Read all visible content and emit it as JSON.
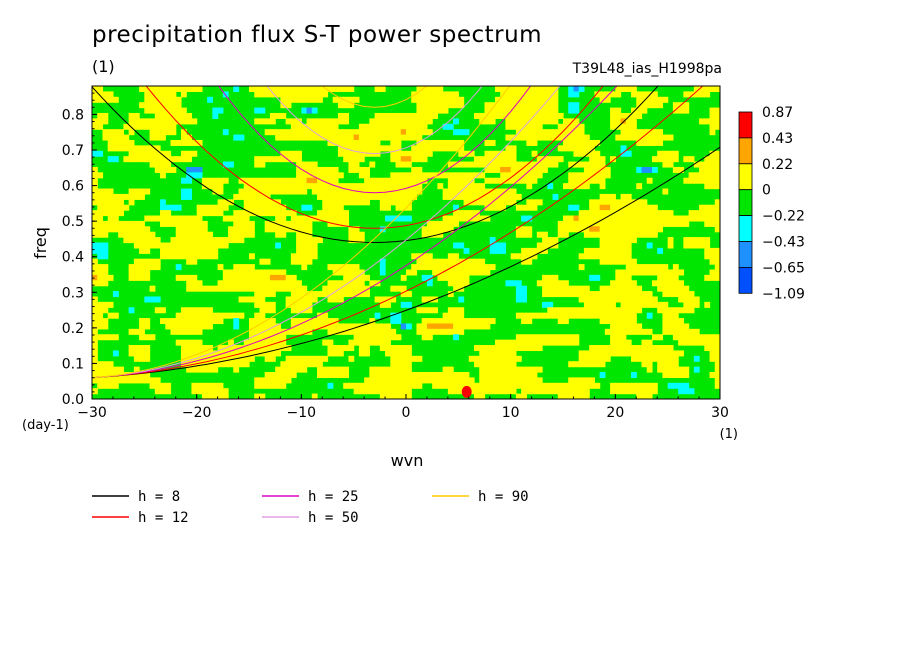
{
  "title": "precipitation flux S-T power spectrum",
  "subtitle": "(1)",
  "run_id": "T39L48_ias_H1998pa",
  "chart_data": {
    "type": "heatmap",
    "xlabel": "wvn",
    "ylabel": "freq",
    "x_unit": "(1)",
    "y_unit": "(day-1)",
    "xlim": [
      -30,
      30
    ],
    "ylim": [
      0,
      0.88
    ],
    "xticks": [
      -30,
      -20,
      -10,
      0,
      10,
      20,
      30
    ],
    "yticks": [
      0.0,
      0.1,
      0.2,
      0.3,
      0.4,
      0.5,
      0.6,
      0.7,
      0.8
    ],
    "colorbar": {
      "labels": [
        "0.87",
        "0.43",
        "0.22",
        "0",
        "-0.22",
        "-0.43",
        "-0.65",
        "-1.09"
      ],
      "colors": [
        "#ff0000",
        "#ffa500",
        "#ffff00",
        "#00e600",
        "#00ffff",
        "#1e90ff",
        "#0050ff"
      ]
    },
    "dominant_levels": [
      "0",
      "0.22"
    ],
    "dispersion_curves": [
      {
        "name": "h =  8",
        "color": "#000000"
      },
      {
        "name": "h = 12",
        "color": "#ff0000"
      },
      {
        "name": "h = 25",
        "color": "#e000c0"
      },
      {
        "name": "h = 50",
        "color": "#e0a0e0"
      },
      {
        "name": "h = 90",
        "color": "#ffcc00"
      }
    ]
  }
}
